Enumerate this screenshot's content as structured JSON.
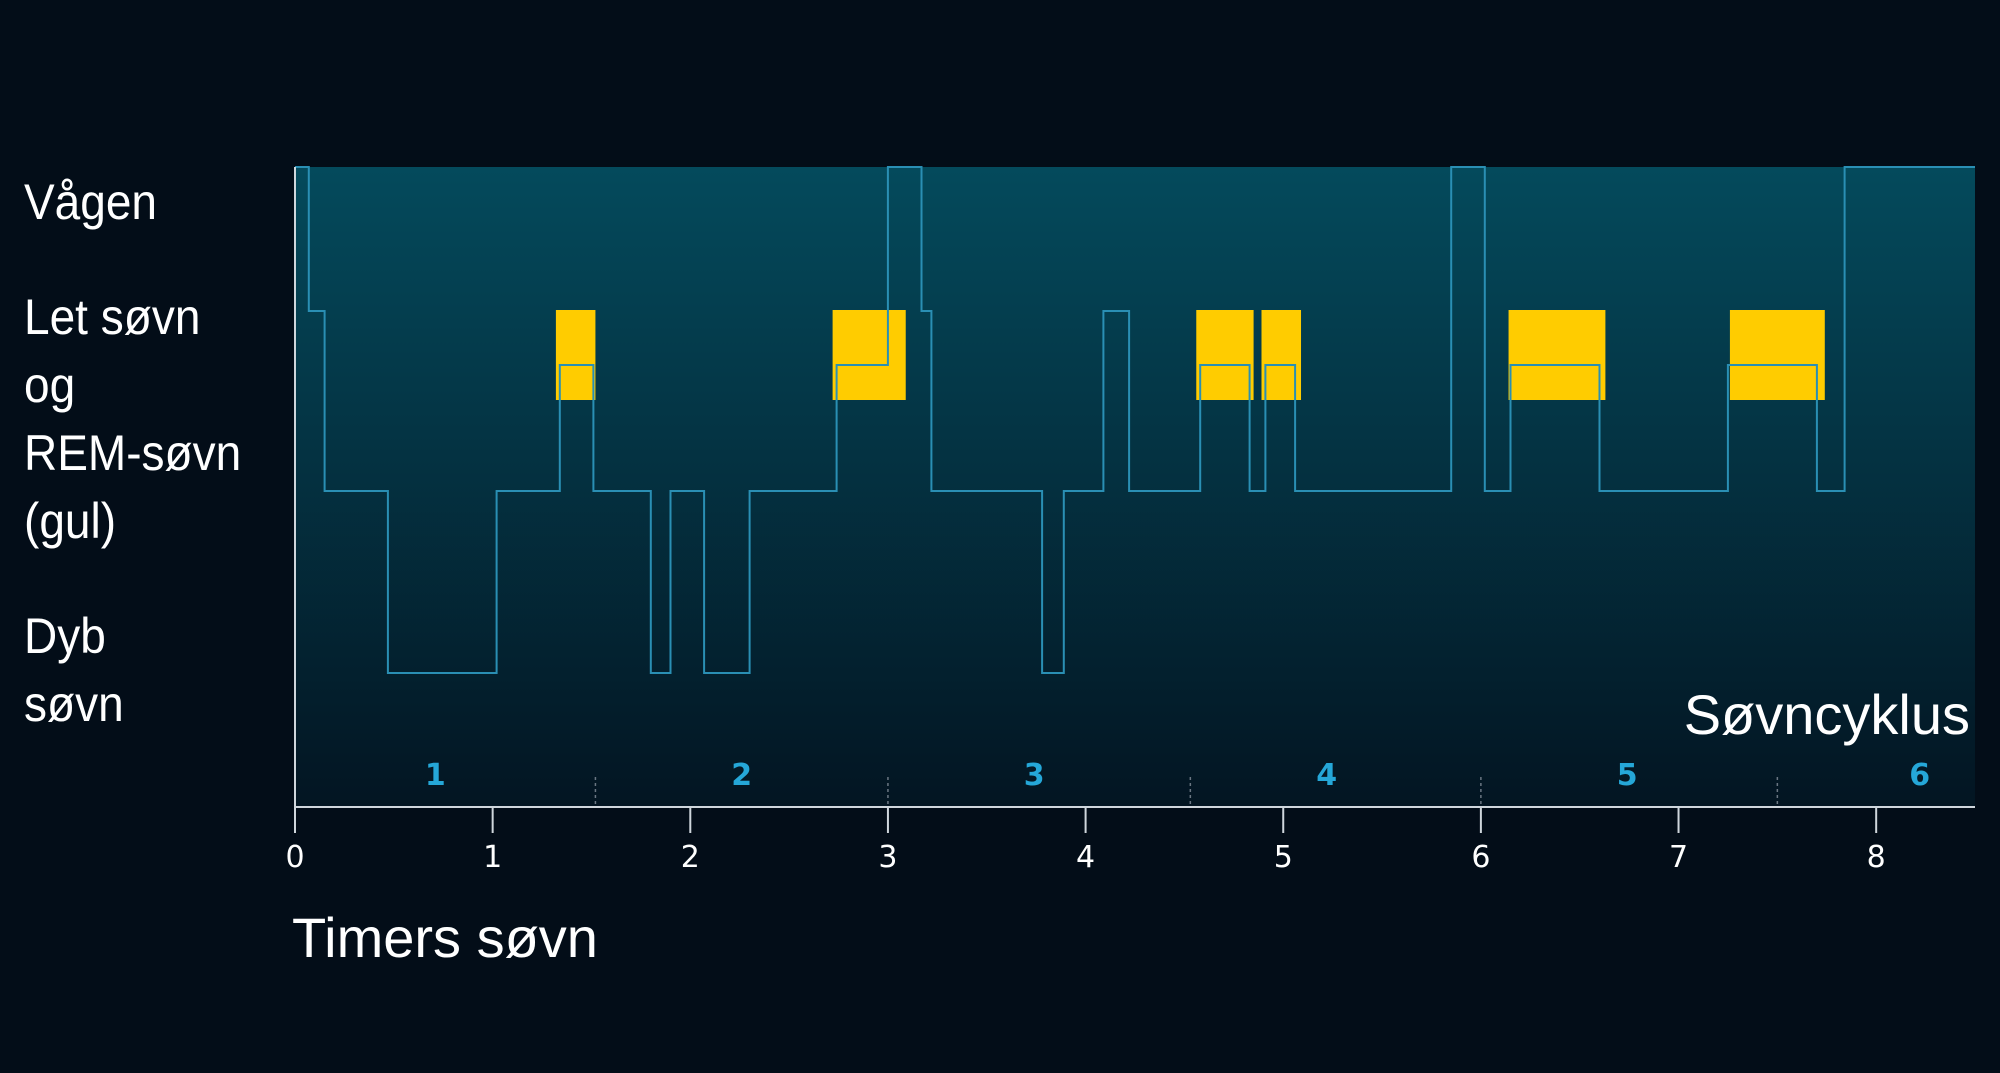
{
  "chart_data": {
    "type": "line",
    "title": "",
    "xlabel": "Timers søvn",
    "ylabel": "",
    "xlim": [
      0,
      8.5
    ],
    "x_ticks": [
      0,
      1,
      2,
      3,
      4,
      5,
      6,
      7,
      8
    ],
    "y_levels": [
      {
        "key": "awake",
        "lines": [
          "Vågen"
        ]
      },
      {
        "key": "light",
        "lines": [
          "Let søvn",
          "og",
          "REM-søvn",
          "(gul)"
        ]
      },
      {
        "key": "deep",
        "lines": [
          "Dyb",
          "søvn"
        ]
      }
    ],
    "hypnogram": {
      "x": [
        0,
        0.07,
        0.07,
        0.15,
        0.15,
        0.47,
        0.47,
        1.02,
        1.02,
        1.34,
        1.34,
        1.51,
        1.51,
        1.8,
        1.8,
        1.9,
        1.9,
        2.07,
        2.07,
        2.3,
        2.3,
        2.74,
        2.74,
        3.0,
        3.0,
        3.17,
        3.17,
        3.22,
        3.22,
        3.78,
        3.78,
        3.89,
        3.89,
        4.09,
        4.09,
        4.22,
        4.22,
        4.58,
        4.58,
        4.83,
        4.83,
        4.91,
        4.91,
        5.06,
        5.06,
        5.85,
        5.85,
        6.02,
        6.02,
        6.15,
        6.15,
        6.6,
        6.6,
        7.25,
        7.25,
        7.7,
        7.7,
        7.84,
        7.84,
        8.5
      ],
      "y": [
        0,
        0,
        1,
        1,
        2,
        2,
        3,
        3,
        2,
        2,
        1.3,
        1.3,
        2,
        2,
        3,
        3,
        2,
        2,
        3,
        3,
        2,
        2,
        1.3,
        1.3,
        0,
        0,
        1,
        1,
        2,
        2,
        3,
        3,
        2,
        2,
        1,
        1,
        2,
        2,
        1.3,
        1.3,
        2,
        2,
        1.3,
        1.3,
        2,
        2,
        0,
        0,
        2,
        2,
        1.3,
        1.3,
        2,
        2,
        1.3,
        1.3,
        2,
        2,
        0,
        0
      ]
    },
    "rem_periods": [
      [
        1.32,
        1.52
      ],
      [
        2.72,
        3.09
      ],
      [
        4.56,
        4.85
      ],
      [
        4.89,
        5.09
      ],
      [
        6.14,
        6.63
      ],
      [
        7.26,
        7.74
      ]
    ],
    "cycles": {
      "label": "Søvncyklus",
      "boundaries": [
        1.52,
        3.0,
        4.53,
        6.0,
        7.5
      ],
      "labels": [
        "1",
        "2",
        "3",
        "4",
        "5",
        "6"
      ],
      "label_x": [
        0.71,
        2.26,
        3.74,
        5.22,
        6.74,
        8.22
      ]
    },
    "grid": false,
    "legend": "none"
  },
  "colors": {
    "background": "#030d18",
    "band_top": "#044a5c",
    "band_bottom": "#031522",
    "line": "#2a8fb4",
    "rem": "#ffcc00",
    "cycle_label": "#25a7d8",
    "axis": "#cfd6dc",
    "text": "#ffffff"
  }
}
